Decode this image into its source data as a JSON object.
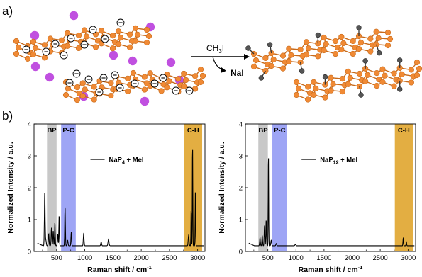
{
  "panel_a": {
    "label": "a)",
    "reagent": "CH",
    "reagent_sub": "3",
    "reagent_tail": "I",
    "byproduct": "NaI",
    "charge_symbol": "⊖",
    "colors": {
      "phosphorus": "#f08a35",
      "bond": "#c86a1a",
      "sodium": "#c050e0",
      "methyl": "#555555"
    }
  },
  "panel_b": {
    "label": "b)"
  },
  "chart_data": [
    {
      "type": "line",
      "ylabel": "Normalized Intensity / a.u.",
      "xlabel": "Raman shift / cm",
      "xlabel_sup": "-1",
      "xticks": [
        500,
        1000,
        1500,
        2000,
        2500,
        3000
      ],
      "yticks": [
        0,
        1,
        2,
        3,
        4
      ],
      "xlim": [
        100,
        3130
      ],
      "ylim": [
        0,
        4
      ],
      "legend": {
        "prefix": "NaP",
        "sub": "4",
        "suffix": " + MeI",
        "placement": "top-center"
      },
      "bands": [
        {
          "label": "BP",
          "from": 330,
          "to": 500,
          "color": "#c8c8c8"
        },
        {
          "label": "P-C",
          "from": 580,
          "to": 840,
          "color": "#9ea5f5"
        },
        {
          "label": "C-H",
          "from": 2760,
          "to": 3080,
          "color": "#e3ae42"
        }
      ],
      "baseline": 0.18,
      "peaks": [
        {
          "x": 290,
          "y": 1.85,
          "w": 9
        },
        {
          "x": 310,
          "y": 0.35,
          "w": 10
        },
        {
          "x": 360,
          "y": 0.55,
          "w": 9
        },
        {
          "x": 410,
          "y": 0.75,
          "w": 9
        },
        {
          "x": 440,
          "y": 0.65,
          "w": 8
        },
        {
          "x": 470,
          "y": 0.9,
          "w": 8
        },
        {
          "x": 520,
          "y": 0.55,
          "w": 9
        },
        {
          "x": 545,
          "y": 1.12,
          "w": 7
        },
        {
          "x": 650,
          "y": 1.4,
          "w": 8
        },
        {
          "x": 695,
          "y": 0.35,
          "w": 10
        },
        {
          "x": 760,
          "y": 0.6,
          "w": 8
        },
        {
          "x": 980,
          "y": 0.55,
          "w": 9
        },
        {
          "x": 1290,
          "y": 0.3,
          "w": 10
        },
        {
          "x": 1420,
          "y": 0.38,
          "w": 12
        },
        {
          "x": 2840,
          "y": 0.5,
          "w": 10
        },
        {
          "x": 2885,
          "y": 1.3,
          "w": 6
        },
        {
          "x": 2910,
          "y": 3.27,
          "w": 6
        },
        {
          "x": 2960,
          "y": 1.9,
          "w": 6
        }
      ]
    },
    {
      "type": "line",
      "ylabel": "Normalized Intensity / a.u.",
      "xlabel": "Raman shift / cm",
      "xlabel_sup": "-1",
      "xticks": [
        500,
        1000,
        1500,
        2000,
        2500,
        3000
      ],
      "yticks": [
        0,
        1,
        2,
        3,
        4
      ],
      "xlim": [
        100,
        3130
      ],
      "ylim": [
        0,
        4
      ],
      "legend": {
        "prefix": "NaP",
        "sub": "12",
        "suffix": " + MeI",
        "placement": "top-center"
      },
      "bands": [
        {
          "label": "BP",
          "from": 330,
          "to": 500,
          "color": "#c8c8c8"
        },
        {
          "label": "P-C",
          "from": 580,
          "to": 840,
          "color": "#9ea5f5"
        },
        {
          "label": "C-H",
          "from": 2760,
          "to": 3080,
          "color": "#e3ae42"
        }
      ],
      "baseline": 0.18,
      "peaks": [
        {
          "x": 360,
          "y": 0.42,
          "w": 9
        },
        {
          "x": 400,
          "y": 0.5,
          "w": 8
        },
        {
          "x": 440,
          "y": 0.82,
          "w": 8
        },
        {
          "x": 470,
          "y": 0.98,
          "w": 8
        },
        {
          "x": 510,
          "y": 3.0,
          "w": 6
        },
        {
          "x": 560,
          "y": 0.35,
          "w": 10
        },
        {
          "x": 650,
          "y": 0.25,
          "w": 10
        },
        {
          "x": 990,
          "y": 0.22,
          "w": 12
        },
        {
          "x": 2910,
          "y": 0.42,
          "w": 7
        },
        {
          "x": 2965,
          "y": 0.3,
          "w": 7
        }
      ]
    }
  ]
}
